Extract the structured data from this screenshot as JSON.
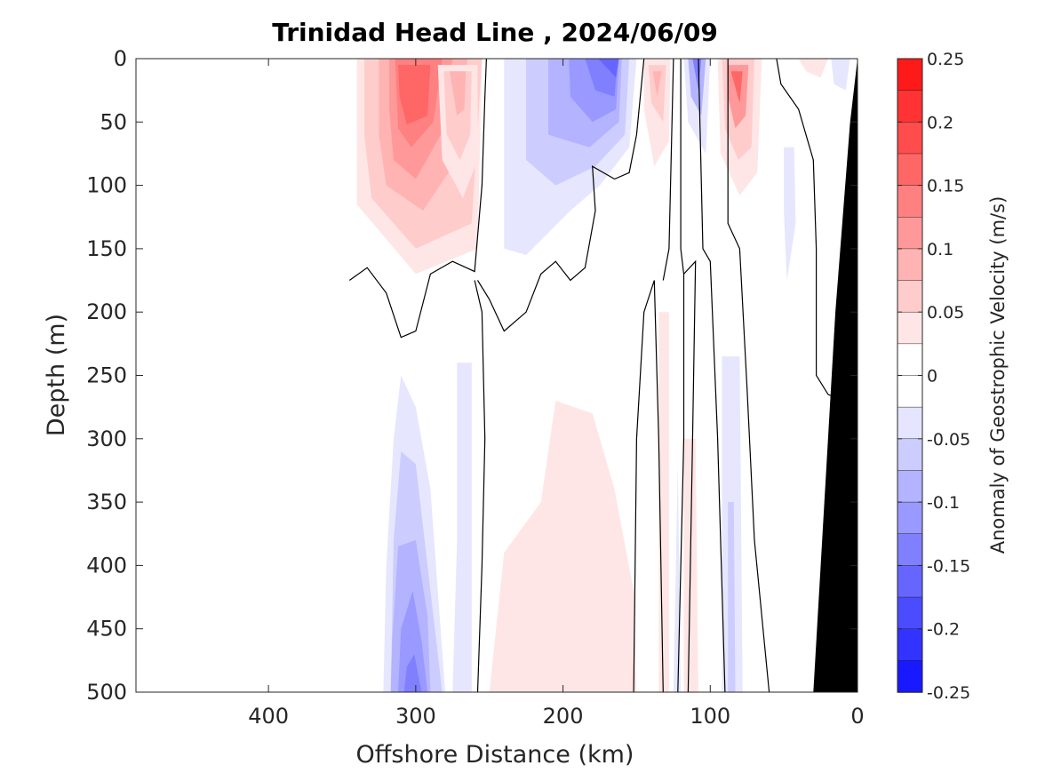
{
  "chart_data": {
    "type": "heatmap",
    "title": "Trinidad Head Line , 2024/06/09",
    "xlabel": "Offshore Distance (km)",
    "ylabel": "Depth (m)",
    "colorbar_label": "Anomaly of Geostrophic Velocity (m/s)",
    "x_axis_reversed": true,
    "y_axis_reversed": true,
    "xlim": [
      490,
      0
    ],
    "ylim": [
      0,
      500
    ],
    "x_ticks": [
      400,
      300,
      200,
      100,
      0
    ],
    "y_ticks": [
      0,
      50,
      100,
      150,
      200,
      250,
      300,
      350,
      400,
      450,
      500
    ],
    "colorbar": {
      "range": [
        -0.25,
        0.25
      ],
      "step": 0.025,
      "tick_labels": [
        "0.25",
        "0.2",
        "0.15",
        "0.1",
        "0.05",
        "0",
        "-0.05",
        "-0.1",
        "-0.15",
        "-0.2",
        "-0.25"
      ],
      "tick_values": [
        0.25,
        0.2,
        0.15,
        0.1,
        0.05,
        0,
        -0.05,
        -0.1,
        -0.15,
        -0.2,
        -0.25
      ]
    },
    "colormap": {
      "negative": "#0000ff",
      "zero": "#ffffff",
      "positive": "#ff0000"
    },
    "bathymetry_color": "#000000",
    "data_coverage": {
      "x_max_km": 340
    },
    "filled_regions": [
      {
        "value": 0.025,
        "points": [
          [
            340,
            0
          ],
          [
            255,
            0
          ],
          [
            258,
            150
          ],
          [
            300,
            170
          ],
          [
            340,
            115
          ]
        ]
      },
      {
        "value": 0.05,
        "points": [
          [
            335,
            0
          ],
          [
            255,
            0
          ],
          [
            262,
            130
          ],
          [
            300,
            150
          ],
          [
            330,
            110
          ],
          [
            335,
            60
          ]
        ]
      },
      {
        "value": 0.075,
        "points": [
          [
            325,
            0
          ],
          [
            265,
            0
          ],
          [
            272,
            80
          ],
          [
            295,
            120
          ],
          [
            320,
            100
          ],
          [
            325,
            60
          ]
        ]
      },
      {
        "value": 0.1,
        "points": [
          [
            318,
            0
          ],
          [
            275,
            0
          ],
          [
            283,
            60
          ],
          [
            300,
            95
          ],
          [
            315,
            80
          ],
          [
            318,
            40
          ]
        ]
      },
      {
        "value": 0.125,
        "points": [
          [
            314,
            0
          ],
          [
            282,
            0
          ],
          [
            288,
            50
          ],
          [
            303,
            70
          ],
          [
            312,
            55
          ]
        ]
      },
      {
        "value": 0.15,
        "points": [
          [
            312,
            5
          ],
          [
            290,
            5
          ],
          [
            292,
            45
          ],
          [
            306,
            52
          ],
          [
            311,
            30
          ]
        ]
      },
      {
        "value": 0.025,
        "points": [
          [
            285,
            5
          ],
          [
            258,
            5
          ],
          [
            258,
            80
          ],
          [
            268,
            110
          ],
          [
            282,
            80
          ]
        ]
      },
      {
        "value": 0.05,
        "points": [
          [
            281,
            10
          ],
          [
            262,
            10
          ],
          [
            263,
            60
          ],
          [
            270,
            80
          ],
          [
            279,
            60
          ]
        ]
      },
      {
        "value": 0.075,
        "points": [
          [
            277,
            10
          ],
          [
            266,
            10
          ],
          [
            267,
            40
          ],
          [
            272,
            45
          ]
        ]
      },
      {
        "value": -0.025,
        "points": [
          [
            240,
            0
          ],
          [
            150,
            0
          ],
          [
            155,
            70
          ],
          [
            175,
            100
          ],
          [
            195,
            120
          ],
          [
            225,
            155
          ],
          [
            240,
            150
          ]
        ]
      },
      {
        "value": -0.05,
        "points": [
          [
            225,
            0
          ],
          [
            155,
            0
          ],
          [
            158,
            60
          ],
          [
            178,
            85
          ],
          [
            205,
            100
          ],
          [
            225,
            80
          ]
        ]
      },
      {
        "value": -0.075,
        "points": [
          [
            210,
            0
          ],
          [
            160,
            0
          ],
          [
            162,
            50
          ],
          [
            182,
            70
          ],
          [
            210,
            60
          ]
        ]
      },
      {
        "value": -0.1,
        "points": [
          [
            196,
            0
          ],
          [
            162,
            0
          ],
          [
            164,
            40
          ],
          [
            180,
            50
          ],
          [
            195,
            30
          ]
        ]
      },
      {
        "value": -0.125,
        "points": [
          [
            185,
            0
          ],
          [
            163,
            0
          ],
          [
            165,
            30
          ],
          [
            178,
            25
          ]
        ]
      },
      {
        "value": -0.15,
        "points": [
          [
            176,
            0
          ],
          [
            162,
            0
          ],
          [
            164,
            15
          ]
        ]
      },
      {
        "value": 0.025,
        "points": [
          [
            145,
            0
          ],
          [
            127,
            0
          ],
          [
            128,
            65
          ],
          [
            138,
            85
          ],
          [
            145,
            40
          ]
        ]
      },
      {
        "value": 0.05,
        "points": [
          [
            142,
            5
          ],
          [
            130,
            5
          ],
          [
            132,
            50
          ],
          [
            140,
            35
          ]
        ]
      },
      {
        "value": 0.075,
        "points": [
          [
            139,
            10
          ],
          [
            133,
            10
          ],
          [
            136,
            30
          ]
        ]
      },
      {
        "value": -0.025,
        "points": [
          [
            118,
            0
          ],
          [
            100,
            0
          ],
          [
            103,
            75
          ],
          [
            115,
            50
          ]
        ]
      },
      {
        "value": -0.075,
        "points": [
          [
            115,
            0
          ],
          [
            103,
            0
          ],
          [
            106,
            45
          ],
          [
            113,
            30
          ]
        ]
      },
      {
        "value": -0.125,
        "points": [
          [
            112,
            0
          ],
          [
            106,
            0
          ],
          [
            108,
            25
          ]
        ]
      },
      {
        "value": 0.025,
        "points": [
          [
            95,
            0
          ],
          [
            65,
            0
          ],
          [
            68,
            90
          ],
          [
            80,
            108
          ],
          [
            93,
            75
          ]
        ]
      },
      {
        "value": 0.05,
        "points": [
          [
            92,
            0
          ],
          [
            70,
            0
          ],
          [
            72,
            70
          ],
          [
            81,
            80
          ],
          [
            90,
            55
          ]
        ]
      },
      {
        "value": 0.1,
        "points": [
          [
            88,
            5
          ],
          [
            74,
            5
          ],
          [
            76,
            45
          ],
          [
            83,
            55
          ],
          [
            88,
            30
          ]
        ]
      },
      {
        "value": 0.15,
        "points": [
          [
            86,
            10
          ],
          [
            78,
            10
          ],
          [
            80,
            35
          ]
        ]
      },
      {
        "value": 0.025,
        "points": [
          [
            40,
            0
          ],
          [
            20,
            0
          ],
          [
            25,
            15
          ],
          [
            35,
            10
          ]
        ]
      },
      {
        "value": -0.025,
        "points": [
          [
            18,
            0
          ],
          [
            5,
            0
          ],
          [
            8,
            25
          ],
          [
            16,
            20
          ]
        ]
      },
      {
        "value": -0.025,
        "points": [
          [
            50,
            70
          ],
          [
            43,
            70
          ],
          [
            42,
            130
          ],
          [
            48,
            175
          ],
          [
            50,
            120
          ]
        ]
      },
      {
        "value": -0.025,
        "points": [
          [
            340,
            500
          ],
          [
            322,
            500
          ],
          [
            320,
            400
          ],
          [
            315,
            300
          ],
          [
            310,
            250
          ],
          [
            300,
            275
          ],
          [
            290,
            340
          ],
          [
            280,
            500
          ]
        ]
      },
      {
        "value": -0.05,
        "points": [
          [
            322,
            500
          ],
          [
            317,
            500
          ],
          [
            315,
            380
          ],
          [
            310,
            310
          ],
          [
            300,
            320
          ],
          [
            290,
            420
          ],
          [
            282,
            500
          ]
        ]
      },
      {
        "value": -0.075,
        "points": [
          [
            317,
            500
          ],
          [
            290,
            500
          ],
          [
            292,
            440
          ],
          [
            300,
            380
          ],
          [
            312,
            385
          ],
          [
            316,
            460
          ]
        ]
      },
      {
        "value": -0.1,
        "points": [
          [
            312,
            500
          ],
          [
            292,
            500
          ],
          [
            296,
            460
          ],
          [
            302,
            420
          ],
          [
            310,
            450
          ]
        ]
      },
      {
        "value": -0.125,
        "points": [
          [
            308,
            500
          ],
          [
            296,
            500
          ],
          [
            301,
            470
          ],
          [
            306,
            480
          ]
        ]
      },
      {
        "value": -0.025,
        "points": [
          [
            272,
            240
          ],
          [
            262,
            240
          ],
          [
            262,
            500
          ],
          [
            275,
            500
          ],
          [
            272,
            380
          ]
        ]
      },
      {
        "value": 0.025,
        "points": [
          [
            250,
            500
          ],
          [
            150,
            500
          ],
          [
            152,
            420
          ],
          [
            165,
            340
          ],
          [
            180,
            280
          ],
          [
            205,
            270
          ],
          [
            215,
            350
          ],
          [
            240,
            390
          ]
        ]
      },
      {
        "value": 0.025,
        "points": [
          [
            135,
            200
          ],
          [
            128,
            200
          ],
          [
            128,
            500
          ],
          [
            135,
            500
          ]
        ]
      },
      {
        "value": 0.025,
        "points": [
          [
            118,
            300
          ],
          [
            110,
            300
          ],
          [
            108,
            500
          ],
          [
            118,
            500
          ]
        ]
      },
      {
        "value": -0.025,
        "points": [
          [
            122,
            320
          ],
          [
            120,
            500
          ],
          [
            125,
            500
          ]
        ]
      },
      {
        "value": -0.025,
        "points": [
          [
            92,
            235
          ],
          [
            80,
            235
          ],
          [
            78,
            500
          ],
          [
            92,
            500
          ]
        ]
      },
      {
        "value": -0.05,
        "points": [
          [
            88,
            350
          ],
          [
            84,
            350
          ],
          [
            83,
            500
          ],
          [
            88,
            500
          ]
        ]
      }
    ],
    "zero_contours": [
      [
        [
          345,
          175
        ],
        [
          333,
          165
        ],
        [
          320,
          185
        ],
        [
          310,
          220
        ],
        [
          300,
          215
        ],
        [
          290,
          170
        ],
        [
          275,
          160
        ],
        [
          260,
          168
        ],
        [
          255,
          100
        ],
        [
          253,
          30
        ],
        [
          252,
          0
        ]
      ],
      [
        [
          260,
          175
        ],
        [
          255,
          200
        ],
        [
          253,
          300
        ],
        [
          255,
          400
        ],
        [
          258,
          500
        ]
      ],
      [
        [
          258,
          175
        ],
        [
          250,
          190
        ],
        [
          240,
          215
        ],
        [
          225,
          200
        ],
        [
          215,
          170
        ],
        [
          205,
          160
        ],
        [
          195,
          175
        ],
        [
          185,
          165
        ],
        [
          178,
          120
        ],
        [
          180,
          85
        ],
        [
          165,
          95
        ],
        [
          155,
          90
        ],
        [
          150,
          60
        ],
        [
          145,
          0
        ]
      ],
      [
        [
          152,
          500
        ],
        [
          150,
          300
        ],
        [
          145,
          200
        ],
        [
          138,
          175
        ],
        [
          135,
          300
        ],
        [
          132,
          500
        ]
      ],
      [
        [
          132,
          175
        ],
        [
          128,
          150
        ],
        [
          125,
          0
        ]
      ],
      [
        [
          120,
          0
        ],
        [
          120,
          150
        ],
        [
          118,
          170
        ],
        [
          118,
          300
        ],
        [
          122,
          500
        ]
      ],
      [
        [
          118,
          170
        ],
        [
          110,
          160
        ],
        [
          112,
          300
        ],
        [
          115,
          500
        ]
      ],
      [
        [
          108,
          0
        ],
        [
          105,
          150
        ],
        [
          100,
          160
        ],
        [
          95,
          300
        ],
        [
          90,
          500
        ]
      ],
      [
        [
          88,
          0
        ],
        [
          88,
          130
        ],
        [
          80,
          150
        ],
        [
          75,
          260
        ],
        [
          70,
          380
        ],
        [
          60,
          500
        ]
      ],
      [
        [
          55,
          0
        ],
        [
          52,
          20
        ],
        [
          40,
          40
        ],
        [
          35,
          60
        ],
        [
          30,
          80
        ],
        [
          28,
          150
        ],
        [
          28,
          250
        ],
        [
          20,
          265
        ],
        [
          10,
          270
        ]
      ]
    ],
    "bathymetry": [
      [
        0,
        0
      ],
      [
        0,
        500
      ],
      [
        30,
        500
      ],
      [
        15,
        200
      ],
      [
        5,
        50
      ],
      [
        0,
        0
      ]
    ]
  }
}
